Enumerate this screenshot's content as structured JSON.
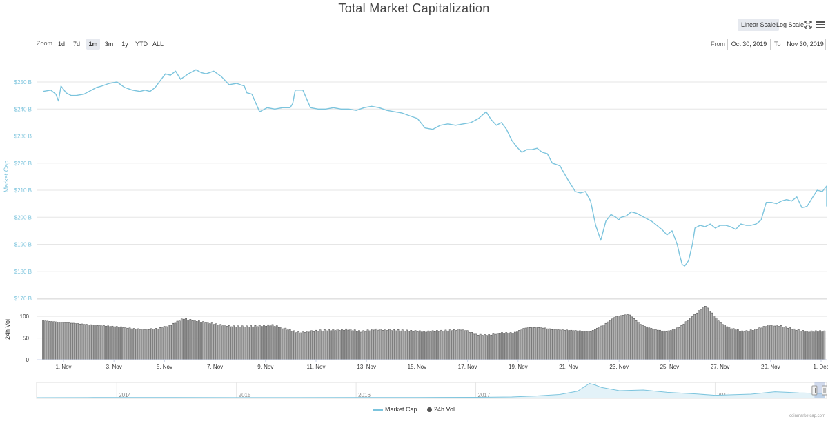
{
  "title": "Total Market Capitalization",
  "scale_buttons": {
    "linear": "Linear Scale",
    "log": "Log Scale"
  },
  "icons": {
    "fullscreen": "fullscreen-icon",
    "menu": "hamburger-menu-icon"
  },
  "zoom": {
    "label": "Zoom",
    "options": [
      "1d",
      "7d",
      "1m",
      "3m",
      "1y",
      "YTD",
      "ALL"
    ],
    "active": "1m"
  },
  "range": {
    "from_label": "From",
    "from_value": "Oct 30, 2019",
    "to_label": "To",
    "to_value": "Nov 30, 2019"
  },
  "legend": {
    "market_cap": "Market Cap",
    "vol": "24h Vol"
  },
  "credits": "coinmarketcap.com",
  "colors": {
    "market_cap": "#7cc4dd",
    "volume_bar": "#b0b0b0",
    "volume_edge": "#444444",
    "active_button": "#e6e9ef"
  },
  "chart_data": [
    {
      "type": "line",
      "title": "Total Market Capitalization",
      "ylabel": "Market Cap",
      "unit": "B",
      "y_ticks": [
        "$250 B",
        "$240 B",
        "$230 B",
        "$220 B",
        "$210 B",
        "$200 B",
        "$190 B",
        "$180 B",
        "$170 B"
      ],
      "ylim": [
        170,
        255
      ],
      "x_ticks": [
        "1. Nov",
        "3. Nov",
        "5. Nov",
        "7. Nov",
        "9. Nov",
        "11. Nov",
        "13. Nov",
        "15. Nov",
        "17. Nov",
        "19. Nov",
        "21. Nov",
        "23. Nov",
        "25. Nov",
        "27. Nov",
        "29. Nov",
        "1. Dec"
      ],
      "x_range_days": [
        0,
        31.5
      ],
      "grid": true,
      "series": [
        {
          "name": "Market Cap",
          "x": [
            0.0,
            0.3,
            0.5,
            0.6,
            0.7,
            0.9,
            1.1,
            1.3,
            1.6,
            1.8,
            2.1,
            2.3,
            2.6,
            2.9,
            3.2,
            3.5,
            3.8,
            4.0,
            4.2,
            4.4,
            4.6,
            4.8,
            5.0,
            5.2,
            5.4,
            5.7,
            6.0,
            6.2,
            6.4,
            6.7,
            7.0,
            7.3,
            7.6,
            7.9,
            8.0,
            8.2,
            8.5,
            8.8,
            9.1,
            9.4,
            9.7,
            9.8,
            9.9,
            10.0,
            10.2,
            10.5,
            10.8,
            11.1,
            11.4,
            11.7,
            12.0,
            12.3,
            12.6,
            12.9,
            13.2,
            13.5,
            13.8,
            14.1,
            14.4,
            14.7,
            15.0,
            15.3,
            15.6,
            15.9,
            16.2,
            16.5,
            16.8,
            17.1,
            17.4,
            17.6,
            17.8,
            18.0,
            18.2,
            18.4,
            18.6,
            18.8,
            19.0,
            19.2,
            19.4,
            19.6,
            19.8,
            20.0,
            20.3,
            20.6,
            20.9,
            21.1,
            21.3,
            21.5,
            21.7,
            21.9,
            22.1,
            22.3,
            22.5,
            22.6,
            22.7,
            22.9,
            23.1,
            23.3,
            23.5,
            23.7,
            23.9,
            24.1,
            24.3,
            24.5,
            24.7,
            24.9,
            25.0,
            25.1,
            25.2,
            25.35,
            25.5,
            25.6,
            25.8,
            26.0,
            26.2,
            26.4,
            26.6,
            26.8,
            27.0,
            27.2,
            27.4,
            27.6,
            27.8,
            28.0,
            28.2,
            28.4,
            28.6,
            28.8,
            29.0,
            29.2,
            29.4,
            29.6,
            29.8,
            30.0,
            30.2,
            30.4,
            30.6,
            30.8,
            31.0,
            31.2,
            31.4,
            31.5
          ],
          "y": [
            246.5,
            247.0,
            245.5,
            243.0,
            248.5,
            246.0,
            245.0,
            245.0,
            245.5,
            246.5,
            248.0,
            248.5,
            249.5,
            250.0,
            248.0,
            247.0,
            246.5,
            247.0,
            246.5,
            248.0,
            250.5,
            253.0,
            252.5,
            254.0,
            251.0,
            253.0,
            254.5,
            253.5,
            253.0,
            254.0,
            252.0,
            249.0,
            249.5,
            248.5,
            246.0,
            245.5,
            239.0,
            240.5,
            240.0,
            240.5,
            240.5,
            242.0,
            247.0,
            247.0,
            247.0,
            240.5,
            240.0,
            240.0,
            240.5,
            240.0,
            240.0,
            239.5,
            240.5,
            241.0,
            240.5,
            239.5,
            239.0,
            238.5,
            237.5,
            236.5,
            233.0,
            232.5,
            234.0,
            234.5,
            234.0,
            234.5,
            235.0,
            236.5,
            239.0,
            236.0,
            234.0,
            235.0,
            232.5,
            228.5,
            226.0,
            224.0,
            225.0,
            225.0,
            225.5,
            224.0,
            223.5,
            220.0,
            219.0,
            214.0,
            209.5,
            209.0,
            209.5,
            206.0,
            197.0,
            191.5,
            198.5,
            201.0,
            200.0,
            199.0,
            200.0,
            200.5,
            202.0,
            201.5,
            200.5,
            199.5,
            198.5,
            197.0,
            195.5,
            193.5,
            195.0,
            190.0,
            186.0,
            182.5,
            182.0,
            184.0,
            190.0,
            196.0,
            197.0,
            196.5,
            197.5,
            196.0,
            197.0,
            197.0,
            196.5,
            195.5,
            197.5,
            197.0,
            197.0,
            197.5,
            199.0,
            205.5,
            205.5,
            205.0,
            206.0,
            206.5,
            206.0,
            207.5,
            203.5,
            204.0,
            207.0,
            210.0,
            209.5,
            211.5,
            210.5,
            207.0,
            206.0,
            204.0
          ]
        }
      ]
    },
    {
      "type": "bar",
      "title": "",
      "ylabel": "24h Vol",
      "y_ticks": [
        "100",
        "50",
        "0"
      ],
      "ylim": [
        0,
        140
      ],
      "grid": true,
      "series": [
        {
          "name": "24h Vol",
          "x": [
            0.0,
            1.0,
            2.0,
            3.0,
            3.5,
            4.0,
            4.5,
            5.0,
            5.5,
            6.0,
            6.5,
            7.0,
            7.5,
            8.0,
            8.5,
            9.0,
            9.5,
            10.0,
            11.0,
            12.0,
            12.5,
            13.0,
            14.0,
            15.0,
            16.0,
            16.5,
            17.0,
            17.5,
            18.0,
            18.5,
            19.0,
            19.5,
            20.0,
            21.0,
            21.5,
            22.0,
            22.5,
            23.0,
            23.5,
            24.0,
            24.5,
            25.0,
            25.5,
            26.0,
            26.3,
            26.6,
            27.0,
            27.5,
            28.0,
            28.5,
            29.0,
            29.5,
            30.0,
            30.5,
            31.0,
            31.5
          ],
          "y": [
            90,
            85,
            80,
            76,
            72,
            70,
            72,
            80,
            95,
            90,
            85,
            80,
            77,
            77,
            78,
            80,
            72,
            63,
            68,
            70,
            65,
            70,
            68,
            65,
            68,
            70,
            58,
            57,
            62,
            62,
            75,
            75,
            70,
            67,
            65,
            80,
            100,
            105,
            80,
            70,
            65,
            75,
            100,
            125,
            105,
            85,
            73,
            65,
            70,
            80,
            78,
            70,
            65,
            66,
            64,
            58
          ]
        }
      ]
    },
    {
      "type": "area",
      "title": "",
      "role": "navigator",
      "x_ticks": [
        "2014",
        "2015",
        "2016",
        "2017",
        "2018",
        "2019"
      ],
      "x_range_years": [
        2013.33,
        2019.92
      ],
      "series": [
        {
          "name": "Market Cap",
          "x": [
            2013.33,
            2013.8,
            2014.0,
            2014.5,
            2015.0,
            2015.5,
            2016.0,
            2016.5,
            2017.0,
            2017.3,
            2017.5,
            2017.7,
            2017.85,
            2017.95,
            2018.0,
            2018.05,
            2018.2,
            2018.4,
            2018.6,
            2018.85,
            2019.0,
            2019.3,
            2019.5,
            2019.7,
            2019.92
          ],
          "y": [
            1.5,
            8,
            12,
            7,
            5,
            4,
            6,
            10,
            18,
            40,
            90,
            170,
            350,
            780,
            690,
            560,
            380,
            420,
            290,
            200,
            130,
            190,
            320,
            260,
            230
          ]
        }
      ]
    }
  ]
}
